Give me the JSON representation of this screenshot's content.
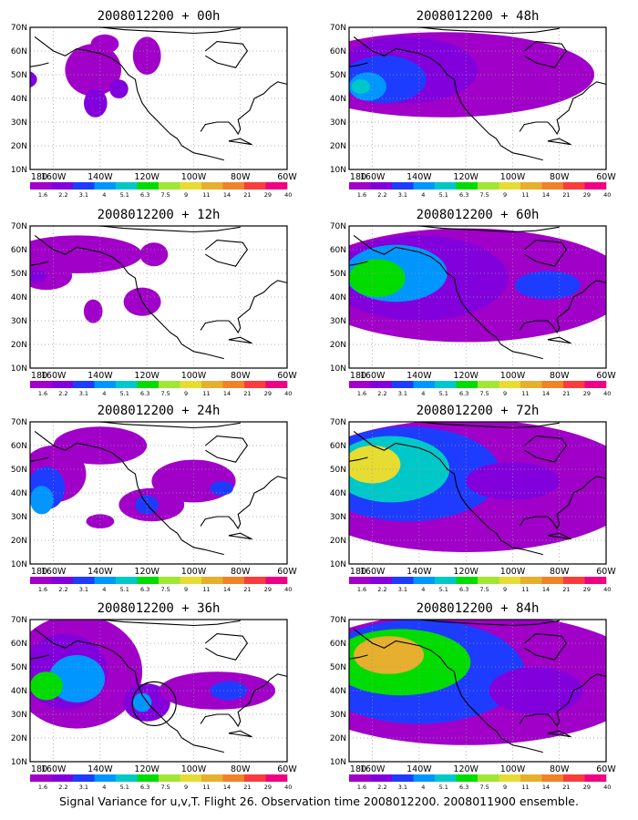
{
  "caption": "Signal Variance for u,v,T. Flight 26. Observation time 2008012200. 2008011900 ensemble.",
  "colors": {
    "frame": "#000000",
    "grid": "#9a9a9a",
    "coast": "#000000",
    "levels": [
      "#a000c8",
      "#8200dc",
      "#1e3cff",
      "#0096ff",
      "#00c8c8",
      "#00dc00",
      "#a0e632",
      "#e6dc32",
      "#e6af2d",
      "#f08228",
      "#fa3c3c",
      "#f00082"
    ]
  },
  "chart_data": {
    "type": "heatmap",
    "x_tick_labels": [
      "180",
      "160W",
      "140W",
      "120W",
      "100W",
      "80W",
      "60W"
    ],
    "y_tick_labels": [
      "10N",
      "20N",
      "30N",
      "40N",
      "50N",
      "60N",
      "70N"
    ],
    "colorbar_labels": [
      "1.6",
      "2.2",
      "3.1",
      "4",
      "5.1",
      "6.3",
      "7.5",
      "9",
      "11",
      "14",
      "21",
      "29",
      "40"
    ],
    "xlim": [
      -170,
      -60
    ],
    "ylim": [
      10,
      70
    ],
    "panels": [
      {
        "title": "2008012200 + 00h",
        "blobs": [
          {
            "lon": -173,
            "lat": 48,
            "rx": 6,
            "ry": 4,
            "level": 1
          },
          {
            "lon": -143,
            "lat": 52,
            "rx": 12,
            "ry": 11,
            "level": 0
          },
          {
            "lon": -142,
            "lat": 38,
            "rx": 5,
            "ry": 6,
            "level": 1
          },
          {
            "lon": -132,
            "lat": 44,
            "rx": 4,
            "ry": 4,
            "level": 1
          },
          {
            "lon": -138,
            "lat": 63,
            "rx": 6,
            "ry": 4,
            "level": 0
          },
          {
            "lon": -120,
            "lat": 58,
            "rx": 6,
            "ry": 8,
            "level": 0
          }
        ]
      },
      {
        "title": "2008012200 + 12h",
        "blobs": [
          {
            "lon": -163,
            "lat": 49,
            "rx": 11,
            "ry": 6,
            "level": 0
          },
          {
            "lon": -167,
            "lat": 49,
            "rx": 4,
            "ry": 3,
            "level": 1
          },
          {
            "lon": -150,
            "lat": 58,
            "rx": 28,
            "ry": 8,
            "level": 0
          },
          {
            "lon": -122,
            "lat": 38,
            "rx": 8,
            "ry": 6,
            "level": 0
          },
          {
            "lon": -143,
            "lat": 34,
            "rx": 4,
            "ry": 5,
            "level": 0
          },
          {
            "lon": -117,
            "lat": 58,
            "rx": 6,
            "ry": 5,
            "level": 0
          }
        ]
      },
      {
        "title": "2008012200 + 24h",
        "blobs": [
          {
            "lon": -160,
            "lat": 48,
            "rx": 14,
            "ry": 12,
            "level": 0
          },
          {
            "lon": -163,
            "lat": 42,
            "rx": 8,
            "ry": 9,
            "level": 2
          },
          {
            "lon": -165,
            "lat": 37,
            "rx": 5,
            "ry": 6,
            "level": 3
          },
          {
            "lon": -140,
            "lat": 60,
            "rx": 20,
            "ry": 8,
            "level": 0
          },
          {
            "lon": -118,
            "lat": 35,
            "rx": 14,
            "ry": 7,
            "level": 0
          },
          {
            "lon": -120,
            "lat": 35,
            "rx": 5,
            "ry": 4,
            "level": 2
          },
          {
            "lon": -100,
            "lat": 45,
            "rx": 18,
            "ry": 9,
            "level": 0
          },
          {
            "lon": -88,
            "lat": 42,
            "rx": 5,
            "ry": 3,
            "level": 2
          },
          {
            "lon": -140,
            "lat": 28,
            "rx": 6,
            "ry": 3,
            "level": 0
          }
        ]
      },
      {
        "title": "2008012200 + 36h",
        "blobs": [
          {
            "lon": -150,
            "lat": 48,
            "rx": 28,
            "ry": 24,
            "level": 0
          },
          {
            "lon": -155,
            "lat": 48,
            "rx": 18,
            "ry": 16,
            "level": 1
          },
          {
            "lon": -150,
            "lat": 45,
            "rx": 12,
            "ry": 10,
            "level": 3
          },
          {
            "lon": -163,
            "lat": 42,
            "rx": 7,
            "ry": 6,
            "level": 5
          },
          {
            "lon": -120,
            "lat": 35,
            "rx": 10,
            "ry": 8,
            "level": 1
          },
          {
            "lon": -122,
            "lat": 35,
            "rx": 4,
            "ry": 4,
            "level": 3
          },
          {
            "lon": -90,
            "lat": 40,
            "rx": 25,
            "ry": 8,
            "level": 0
          },
          {
            "lon": -85,
            "lat": 40,
            "rx": 8,
            "ry": 4,
            "level": 2
          }
        ]
      },
      {
        "title": "2008012200 + 48h",
        "blobs": [
          {
            "lon": -130,
            "lat": 50,
            "rx": 65,
            "ry": 18,
            "level": 0
          },
          {
            "lon": -145,
            "lat": 52,
            "rx": 30,
            "ry": 14,
            "level": 1
          },
          {
            "lon": -155,
            "lat": 48,
            "rx": 18,
            "ry": 10,
            "level": 2
          },
          {
            "lon": -162,
            "lat": 45,
            "rx": 8,
            "ry": 6,
            "level": 3
          },
          {
            "lon": -165,
            "lat": 45,
            "rx": 4,
            "ry": 3,
            "level": 4
          }
        ]
      },
      {
        "title": "2008012200 + 60h",
        "blobs": [
          {
            "lon": -120,
            "lat": 45,
            "rx": 70,
            "ry": 24,
            "level": 0
          },
          {
            "lon": -140,
            "lat": 48,
            "rx": 38,
            "ry": 18,
            "level": 1
          },
          {
            "lon": -150,
            "lat": 50,
            "rx": 22,
            "ry": 12,
            "level": 3
          },
          {
            "lon": -158,
            "lat": 48,
            "rx": 12,
            "ry": 8,
            "level": 5
          },
          {
            "lon": -85,
            "lat": 45,
            "rx": 14,
            "ry": 6,
            "level": 2
          }
        ]
      },
      {
        "title": "2008012200 + 72h",
        "blobs": [
          {
            "lon": -120,
            "lat": 43,
            "rx": 75,
            "ry": 28,
            "level": 0
          },
          {
            "lon": -145,
            "lat": 48,
            "rx": 40,
            "ry": 20,
            "level": 2
          },
          {
            "lon": -152,
            "lat": 50,
            "rx": 25,
            "ry": 14,
            "level": 4
          },
          {
            "lon": -160,
            "lat": 52,
            "rx": 12,
            "ry": 8,
            "level": 7
          },
          {
            "lon": -100,
            "lat": 45,
            "rx": 20,
            "ry": 8,
            "level": 1
          }
        ]
      },
      {
        "title": "2008012200 + 84h",
        "blobs": [
          {
            "lon": -120,
            "lat": 45,
            "rx": 78,
            "ry": 28,
            "level": 0
          },
          {
            "lon": -140,
            "lat": 48,
            "rx": 45,
            "ry": 22,
            "level": 2
          },
          {
            "lon": -148,
            "lat": 52,
            "rx": 30,
            "ry": 14,
            "level": 5
          },
          {
            "lon": -153,
            "lat": 55,
            "rx": 15,
            "ry": 8,
            "level": 8
          },
          {
            "lon": -90,
            "lat": 40,
            "rx": 20,
            "ry": 10,
            "level": 1
          }
        ]
      }
    ]
  }
}
